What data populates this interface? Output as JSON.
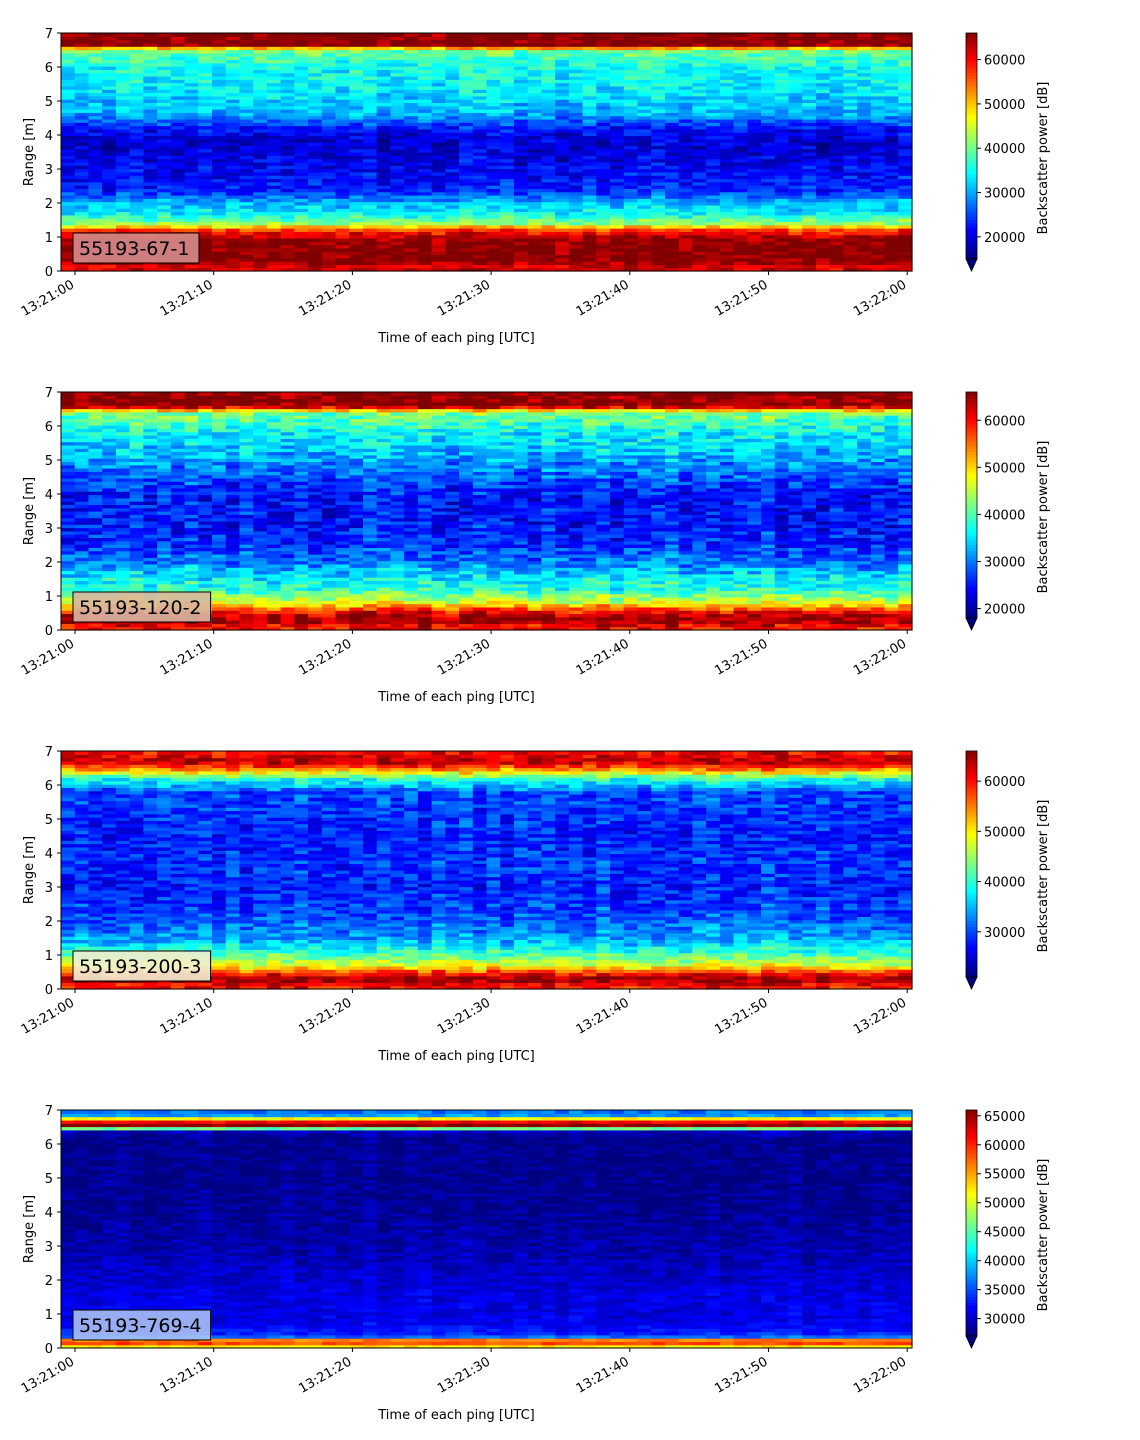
{
  "colormap": "jet",
  "colors": {
    "jet": [
      "#00007f",
      "#0000ff",
      "#007fff",
      "#00ffff",
      "#7fff7f",
      "#ffff00",
      "#ff7f00",
      "#ff0000",
      "#7f0000"
    ],
    "label_box_alpha": 0.6
  },
  "chart_data": [
    {
      "type": "heatmap",
      "label": "55193-67-1",
      "label_color": "#d58b8b",
      "xlabel": "Time of each ping [UTC]",
      "ylabel": "Range [m]",
      "ylim": [
        0,
        7
      ],
      "y_ticks": [
        "0",
        "1",
        "2",
        "3",
        "4",
        "5",
        "6",
        "7"
      ],
      "x_ticks": [
        "13:21:00",
        "13:21:10",
        "13:21:20",
        "13:21:30",
        "13:21:40",
        "13:21:50",
        "13:22:00"
      ],
      "colorbar": {
        "label": "Backscatter power [dB]",
        "min": 15000,
        "max": 66000,
        "ticks": [
          "20000",
          "30000",
          "40000",
          "50000",
          "60000"
        ],
        "tick_values": [
          20000,
          30000,
          40000,
          50000,
          60000
        ],
        "extend": "min"
      },
      "range_profile": [
        {
          "range": 0.15,
          "value": 62000
        },
        {
          "range": 0.3,
          "value": 66000
        },
        {
          "range": 0.9,
          "value": 66000
        },
        {
          "range": 1.2,
          "value": 58000
        },
        {
          "range": 1.4,
          "value": 42000
        },
        {
          "range": 1.7,
          "value": 34000
        },
        {
          "range": 2.0,
          "value": 31000
        },
        {
          "range": 2.4,
          "value": 23000
        },
        {
          "range": 3.0,
          "value": 21000
        },
        {
          "range": 3.8,
          "value": 19000
        },
        {
          "range": 4.2,
          "value": 22000
        },
        {
          "range": 4.6,
          "value": 30000
        },
        {
          "range": 5.2,
          "value": 33000
        },
        {
          "range": 6.0,
          "value": 35000
        },
        {
          "range": 6.5,
          "value": 40000
        },
        {
          "range": 6.65,
          "value": 66000
        },
        {
          "range": 7.0,
          "value": 66000
        }
      ],
      "variability": 5000,
      "seed": 11
    },
    {
      "type": "heatmap",
      "label": "55193-120-2",
      "label_color": "#d9b7a2",
      "xlabel": "Time of each ping [UTC]",
      "ylabel": "Range [m]",
      "ylim": [
        0,
        7
      ],
      "y_ticks": [
        "0",
        "1",
        "2",
        "3",
        "4",
        "5",
        "6",
        "7"
      ],
      "x_ticks": [
        "13:21:00",
        "13:21:10",
        "13:21:20",
        "13:21:30",
        "13:21:40",
        "13:21:50",
        "13:22:00"
      ],
      "colorbar": {
        "label": "Backscatter power [dB]",
        "min": 18000,
        "max": 66000,
        "ticks": [
          "20000",
          "30000",
          "40000",
          "50000",
          "60000"
        ],
        "tick_values": [
          20000,
          30000,
          40000,
          50000,
          60000
        ],
        "extend": "min"
      },
      "range_profile": [
        {
          "range": 0.1,
          "value": 60000
        },
        {
          "range": 0.3,
          "value": 66000
        },
        {
          "range": 0.5,
          "value": 62000
        },
        {
          "range": 0.8,
          "value": 48000
        },
        {
          "range": 1.2,
          "value": 38000
        },
        {
          "range": 1.5,
          "value": 36000
        },
        {
          "range": 2.0,
          "value": 30000
        },
        {
          "range": 2.6,
          "value": 26000
        },
        {
          "range": 3.2,
          "value": 25000
        },
        {
          "range": 4.0,
          "value": 25000
        },
        {
          "range": 4.6,
          "value": 29000
        },
        {
          "range": 5.2,
          "value": 33000
        },
        {
          "range": 5.8,
          "value": 36000
        },
        {
          "range": 6.4,
          "value": 42000
        },
        {
          "range": 6.6,
          "value": 66000
        },
        {
          "range": 7.0,
          "value": 66000
        }
      ],
      "variability": 6000,
      "seed": 23
    },
    {
      "type": "heatmap",
      "label": "55193-200-3",
      "label_color": "#f1eed2",
      "xlabel": "Time of each ping [UTC]",
      "ylabel": "Range [m]",
      "ylim": [
        0,
        7
      ],
      "y_ticks": [
        "0",
        "1",
        "2",
        "3",
        "4",
        "5",
        "6",
        "7"
      ],
      "x_ticks": [
        "13:21:00",
        "13:21:10",
        "13:21:20",
        "13:21:30",
        "13:21:40",
        "13:21:50",
        "13:22:00"
      ],
      "colorbar": {
        "label": "Backscatter power [dB]",
        "min": 21000,
        "max": 66000,
        "ticks": [
          "30000",
          "40000",
          "50000",
          "60000"
        ],
        "tick_values": [
          30000,
          40000,
          50000,
          60000
        ],
        "extend": "min"
      },
      "range_profile": [
        {
          "range": 0.1,
          "value": 60000
        },
        {
          "range": 0.3,
          "value": 66000
        },
        {
          "range": 0.5,
          "value": 58000
        },
        {
          "range": 0.7,
          "value": 48000
        },
        {
          "range": 1.1,
          "value": 40000
        },
        {
          "range": 1.5,
          "value": 34000
        },
        {
          "range": 2.2,
          "value": 30000
        },
        {
          "range": 3.0,
          "value": 28000
        },
        {
          "range": 3.8,
          "value": 29000
        },
        {
          "range": 4.5,
          "value": 28000
        },
        {
          "range": 5.2,
          "value": 29000
        },
        {
          "range": 5.8,
          "value": 30000
        },
        {
          "range": 6.2,
          "value": 40000
        },
        {
          "range": 6.5,
          "value": 56000
        },
        {
          "range": 6.7,
          "value": 64000
        },
        {
          "range": 7.0,
          "value": 60000
        }
      ],
      "variability": 5000,
      "seed": 37
    },
    {
      "type": "heatmap",
      "label": "55193-769-4",
      "label_color": "#a8bff4",
      "xlabel": "Time of each ping [UTC]",
      "ylabel": "Range [m]",
      "ylim": [
        0,
        7
      ],
      "y_ticks": [
        "0",
        "1",
        "2",
        "3",
        "4",
        "5",
        "6",
        "7"
      ],
      "x_ticks": [
        "13:21:00",
        "13:21:10",
        "13:21:20",
        "13:21:30",
        "13:21:40",
        "13:21:50",
        "13:22:00"
      ],
      "colorbar": {
        "label": "Backscatter power [dB]",
        "min": 27000,
        "max": 66000,
        "ticks": [
          "30000",
          "35000",
          "40000",
          "45000",
          "50000",
          "55000",
          "60000",
          "65000"
        ],
        "tick_values": [
          30000,
          35000,
          40000,
          45000,
          50000,
          55000,
          60000,
          65000
        ],
        "extend": "min"
      },
      "range_profile": [
        {
          "range": 0.1,
          "value": 52000
        },
        {
          "range": 0.2,
          "value": 66000
        },
        {
          "range": 0.35,
          "value": 34000
        },
        {
          "range": 0.8,
          "value": 31000
        },
        {
          "range": 1.5,
          "value": 31000
        },
        {
          "range": 2.5,
          "value": 29500
        },
        {
          "range": 4.0,
          "value": 28000
        },
        {
          "range": 6.2,
          "value": 27500
        },
        {
          "range": 6.4,
          "value": 30000
        },
        {
          "range": 6.55,
          "value": 66000
        },
        {
          "range": 6.7,
          "value": 60000
        },
        {
          "range": 6.85,
          "value": 38000
        },
        {
          "range": 7.0,
          "value": 36000
        }
      ],
      "variability": 2200,
      "seed": 53
    }
  ]
}
